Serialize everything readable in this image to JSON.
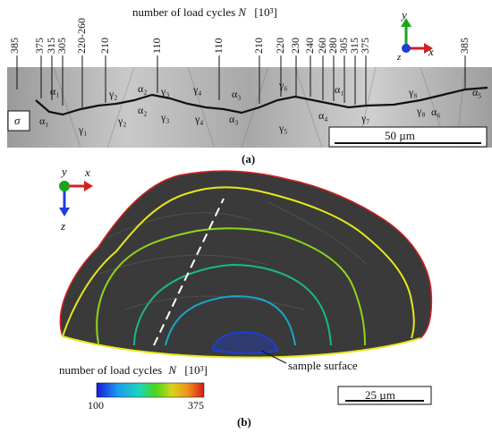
{
  "panel_a": {
    "title_text": "number of load cycles",
    "title_symbol": "N",
    "title_unit": "[10³]",
    "cycle_ticks": [
      "385",
      "375",
      "315",
      "305",
      "220-260",
      "210",
      "110",
      "110",
      "210",
      "220",
      "230",
      "240",
      "260",
      "280",
      "305",
      "315",
      "375",
      "385"
    ],
    "phase_labels_upper": [
      "α₁",
      "γ₂",
      "α₂",
      "γ₃",
      "γ₄",
      "α₃",
      "γ₆",
      "α₁",
      "γ₈",
      "α₅"
    ],
    "phase_labels_lower": [
      "α₁",
      "γ₁",
      "γ₂",
      "α₂",
      "γ₃",
      "γ₄",
      "α₃",
      "γ₅",
      "α₄",
      "γ₇",
      "γ₈",
      "α₆"
    ],
    "stress_label": "σ",
    "scale_label": "50 µm",
    "axes": {
      "y": "y",
      "z": "z",
      "x": "x"
    },
    "caption": "(a)"
  },
  "panel_b": {
    "axes": {
      "y": "y",
      "x": "x",
      "z": "z"
    },
    "surface_label": "sample surface",
    "colorbar_title_text": "number of load cycles",
    "colorbar_title_symbol": "N",
    "colorbar_unit": "[10³]",
    "colorbar_min": "100",
    "colorbar_max": "375",
    "scale_label": "25 µm",
    "caption": "(b)"
  },
  "colors": {
    "red": "#d62020",
    "green": "#1aa51a",
    "blue": "#1d3fd6",
    "yellow": "#e8e81a"
  }
}
